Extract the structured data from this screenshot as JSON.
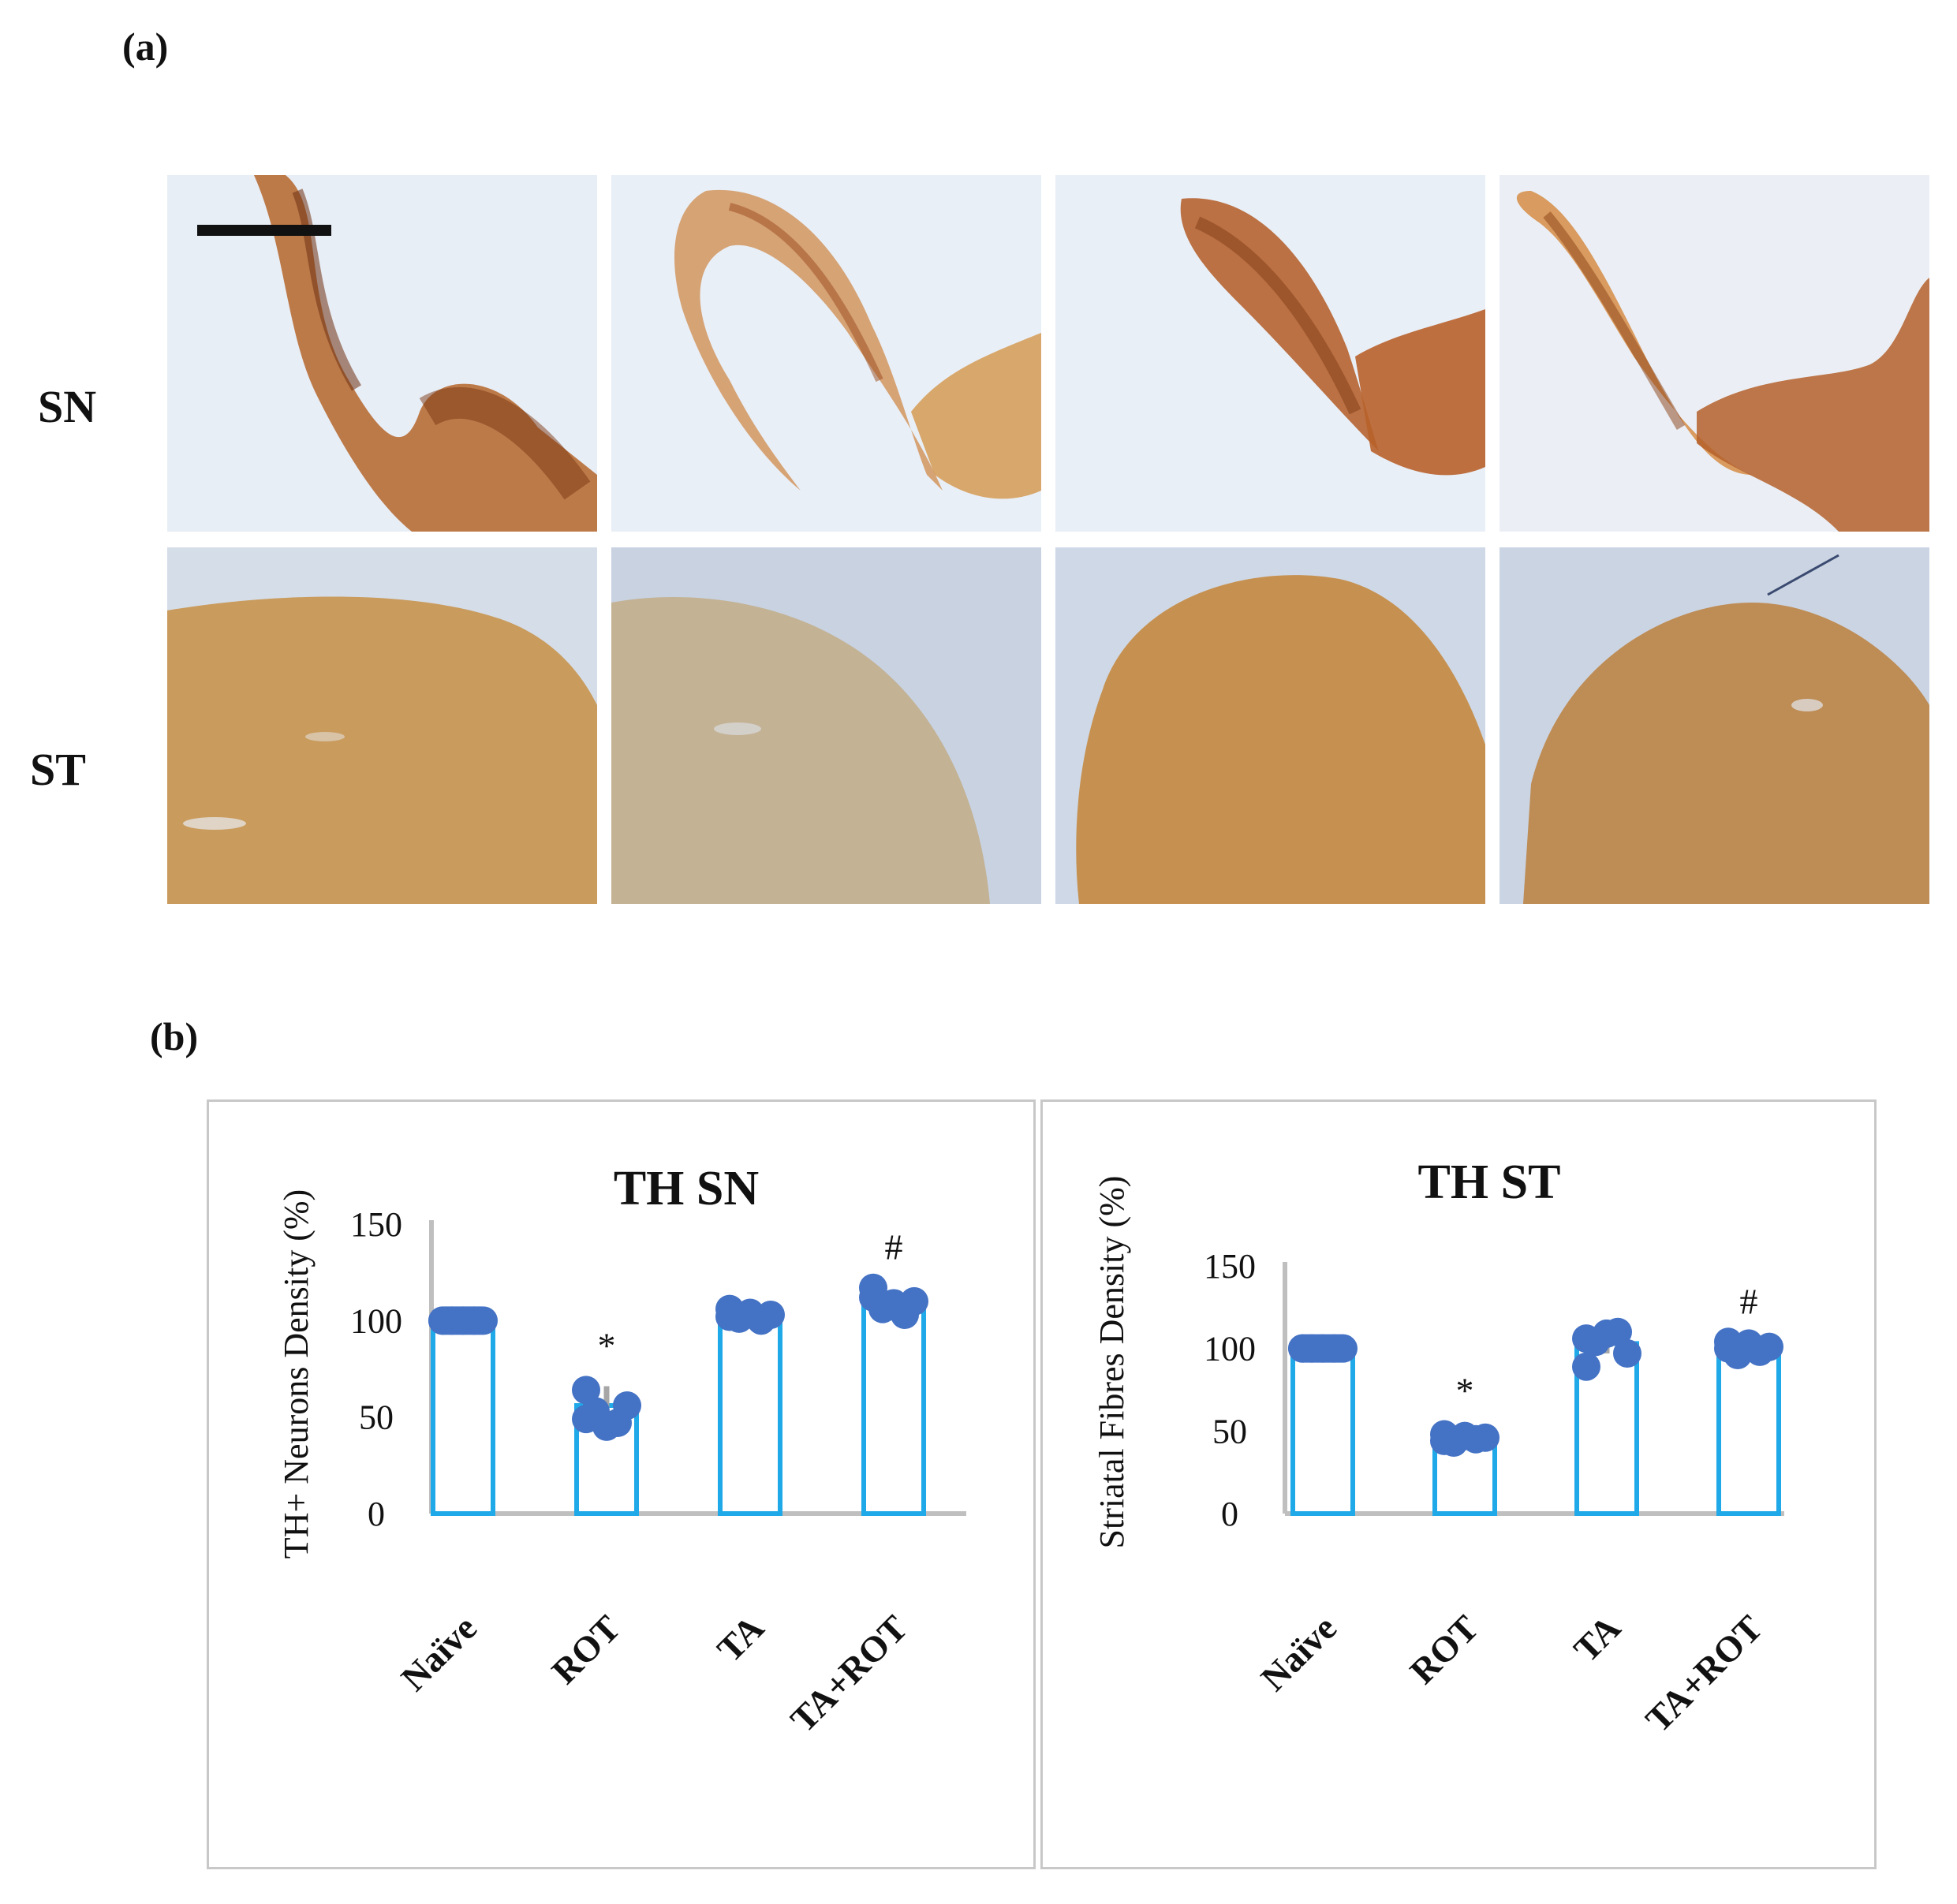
{
  "labels": {
    "panel_a": "(a)",
    "panel_b": "(b)",
    "row_sn": "SN",
    "row_st": "ST"
  },
  "colors": {
    "bar_edge": "#1fa9e8",
    "dot": "#4472c4",
    "error_bar": "#a6a6a6",
    "axis": "#bfbfbf",
    "stain_brown": "#b5651d",
    "stain_bg": "#e6ecf5"
  },
  "chart_data": [
    {
      "type": "bar",
      "title": "TH SN",
      "ylabel": "TH+ Neurons Density (%)",
      "categories": [
        "Naïve",
        "ROT",
        "TA",
        "TA+ROT"
      ],
      "values": [
        100,
        56,
        102,
        108
      ],
      "error": [
        0,
        10,
        2,
        8
      ],
      "points": [
        [
          100,
          100,
          100,
          100,
          100,
          100
        ],
        [
          64,
          56,
          53,
          47,
          45,
          49
        ],
        [
          106,
          103,
          101,
          100,
          104,
          102
        ],
        [
          117,
          110,
          106,
          103,
          109,
          112
        ]
      ],
      "significance": [
        "",
        "*",
        "",
        "#"
      ],
      "ylim": [
        0,
        150
      ],
      "yticks": [
        0,
        50,
        100,
        150
      ],
      "grid": false
    },
    {
      "type": "bar",
      "title": "TH ST",
      "ylabel": "Striatal Fibres Density (%)",
      "categories": [
        "Naïve",
        "ROT",
        "TA",
        "TA+ROT"
      ],
      "values": [
        100,
        47,
        103,
        100
      ],
      "error": [
        0,
        3,
        6,
        4
      ],
      "points": [
        [
          100,
          100,
          100,
          100,
          100,
          100
        ],
        [
          48,
          46,
          43,
          45,
          47,
          44
        ],
        [
          89,
          97,
          104,
          110,
          109,
          106
        ],
        [
          104,
          101,
          96,
          98,
          103,
          100
        ]
      ],
      "significance": [
        "",
        "*",
        "",
        "#"
      ],
      "ylim": [
        0,
        150
      ],
      "yticks": [
        0,
        50,
        100,
        150
      ],
      "grid": false
    }
  ]
}
